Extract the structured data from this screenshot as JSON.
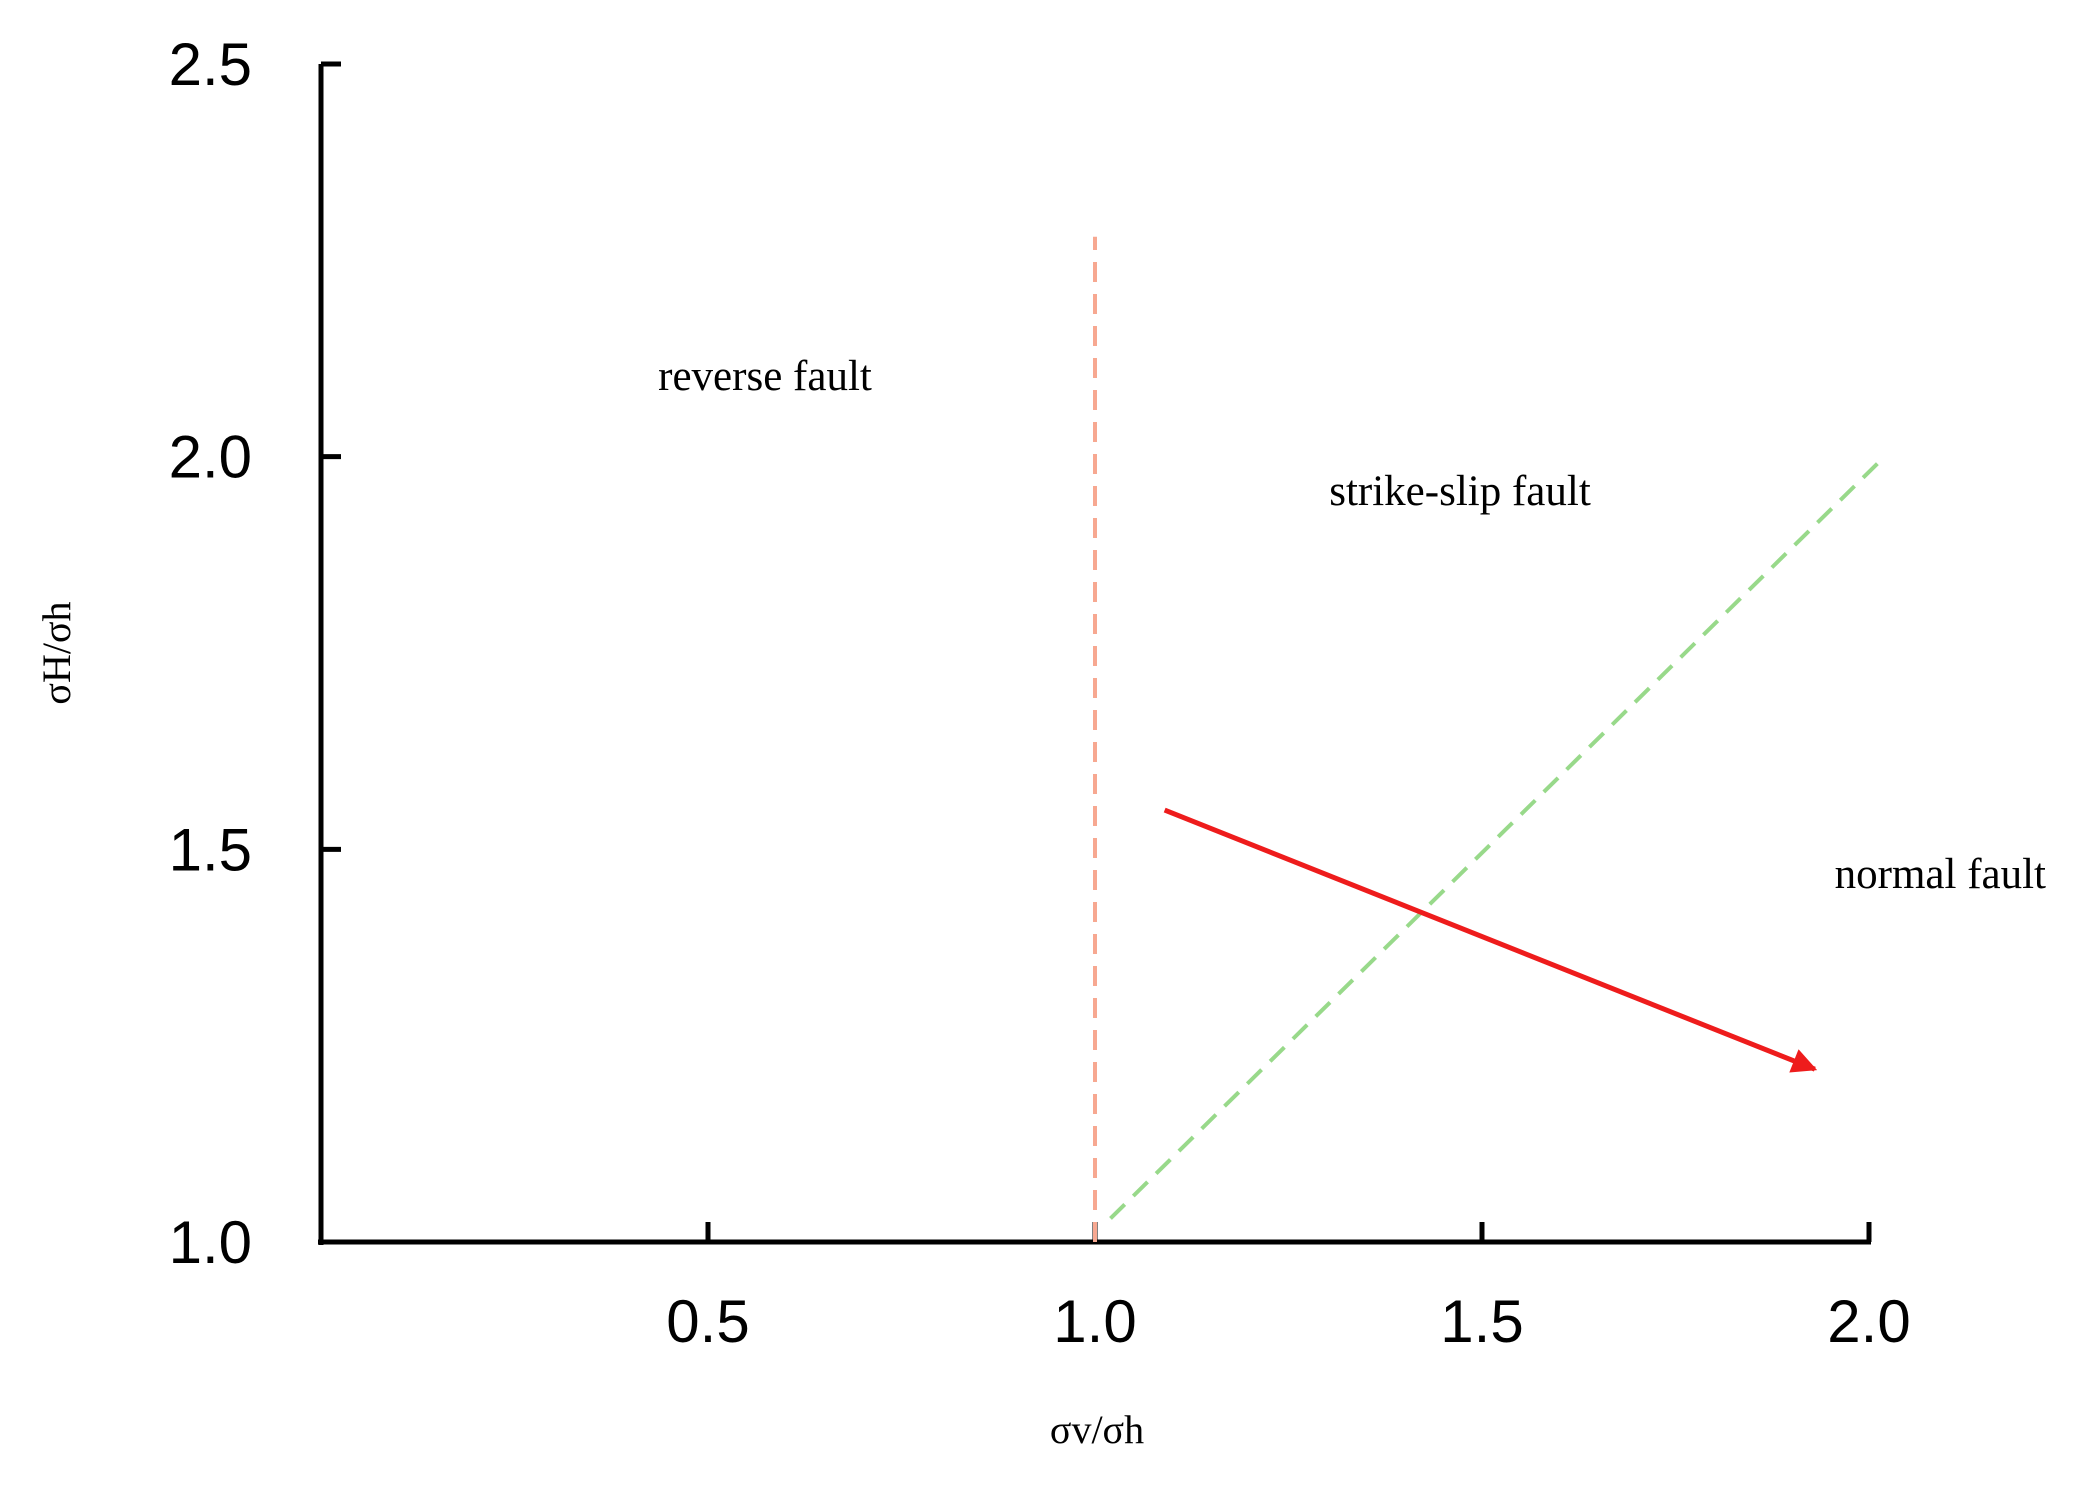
{
  "chart_data": {
    "type": "line",
    "x_label": "σv/σh",
    "y_label": "σH/σh",
    "xlim": [
      0,
      2.0
    ],
    "ylim": [
      1.0,
      2.5
    ],
    "xticks": [
      0.5,
      {
        "value": 1,
        "label": "1.0"
      },
      1.5,
      {
        "value": 2,
        "label": "2.0"
      }
    ],
    "yticks": [
      {
        "value": 1,
        "label": "1.0"
      },
      1.5,
      {
        "value": 2,
        "label": "2.0"
      },
      2.5
    ],
    "grid": false,
    "series": [
      {
        "color": "#f7a891",
        "dashed": true,
        "arrow": false,
        "x": [
          1.0,
          1.0
        ],
        "values": [
          1.0,
          2.28
        ]
      },
      {
        "color": "#98d98a",
        "dashed": true,
        "arrow": false,
        "x": [
          1.02,
          2.02
        ],
        "values": [
          1.03,
          2.0
        ]
      },
      {
        "color": "#ee1c1c",
        "dashed": false,
        "arrow": true,
        "x": [
          1.09,
          1.93
        ],
        "values": [
          1.55,
          1.22
        ]
      }
    ],
    "annotations": [
      "reverse fault",
      "strike-slip fault",
      "normal fault"
    ]
  }
}
